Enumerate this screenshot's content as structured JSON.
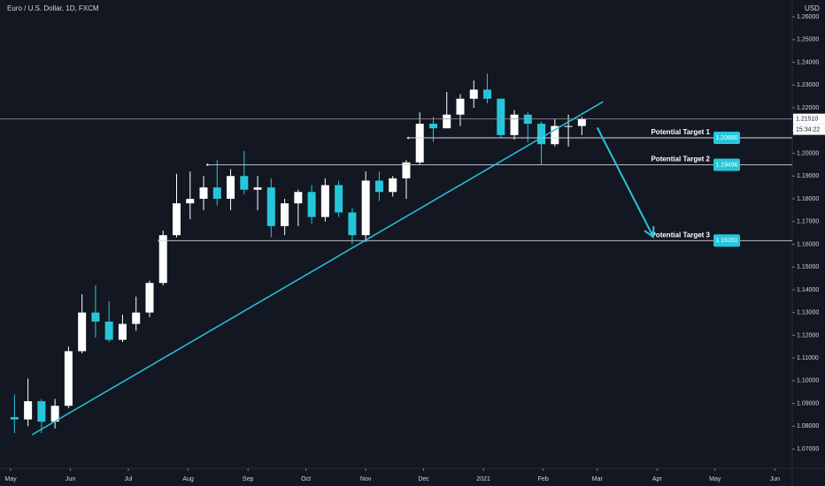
{
  "chart_data": {
    "type": "candlestick",
    "title": "Euro / U.S. Dollar, 1D, FXCM",
    "y_axis_label": "USD",
    "up_color": "#ffffff",
    "down_color": "#26c6da",
    "xlim": [
      -5.5,
      405
    ],
    "ylim": [
      1.0615,
      1.2674
    ],
    "xticks": [
      {
        "value": 0,
        "label": "May"
      },
      {
        "value": 31,
        "label": "Jun"
      },
      {
        "value": 61,
        "label": "Jul"
      },
      {
        "value": 92,
        "label": "Aug"
      },
      {
        "value": 123,
        "label": "Sep"
      },
      {
        "value": 153,
        "label": "Oct"
      },
      {
        "value": 184,
        "label": "Nov"
      },
      {
        "value": 214,
        "label": "Dec"
      },
      {
        "value": 245,
        "label": "2021"
      },
      {
        "value": 276,
        "label": "Feb"
      },
      {
        "value": 304,
        "label": "Mar"
      },
      {
        "value": 335,
        "label": "Apr"
      },
      {
        "value": 365,
        "label": "May"
      },
      {
        "value": 396,
        "label": "Jun"
      }
    ],
    "yticks": [
      {
        "value": 1.07,
        "label": "1.07000"
      },
      {
        "value": 1.08,
        "label": "1.08000"
      },
      {
        "value": 1.09,
        "label": "1.09000"
      },
      {
        "value": 1.1,
        "label": "1.10000"
      },
      {
        "value": 1.11,
        "label": "1.11000"
      },
      {
        "value": 1.12,
        "label": "1.12000"
      },
      {
        "value": 1.13,
        "label": "1.13000"
      },
      {
        "value": 1.14,
        "label": "1.14000"
      },
      {
        "value": 1.15,
        "label": "1.15000"
      },
      {
        "value": 1.16,
        "label": "1.16000"
      },
      {
        "value": 1.17,
        "label": "1.17000"
      },
      {
        "value": 1.18,
        "label": "1.18000"
      },
      {
        "value": 1.19,
        "label": "1.19000"
      },
      {
        "value": 1.2,
        "label": "1.20000"
      },
      {
        "value": 1.21,
        "label": "1.21000"
      },
      {
        "value": 1.22,
        "label": "1.22000"
      },
      {
        "value": 1.23,
        "label": "1.23000"
      },
      {
        "value": 1.24,
        "label": "1.24000"
      },
      {
        "value": 1.25,
        "label": "1.25000"
      },
      {
        "value": 1.26,
        "label": "1.26000"
      }
    ],
    "x": [
      2,
      9,
      16,
      23,
      30,
      37,
      44,
      51,
      58,
      65,
      72,
      79,
      86,
      93,
      100,
      107,
      114,
      121,
      128,
      135,
      142,
      149,
      156,
      163,
      170,
      177,
      184,
      191,
      198,
      205,
      212,
      219,
      226,
      233,
      240,
      247,
      254,
      261,
      268,
      275,
      282,
      289,
      296
    ],
    "open": [
      1.084,
      1.083,
      1.091,
      1.082,
      1.089,
      1.113,
      1.13,
      1.126,
      1.118,
      1.125,
      1.13,
      1.143,
      1.164,
      1.178,
      1.18,
      1.185,
      1.18,
      1.19,
      1.184,
      1.185,
      1.168,
      1.178,
      1.183,
      1.172,
      1.186,
      1.174,
      1.164,
      1.188,
      1.183,
      1.189,
      1.196,
      1.213,
      1.211,
      1.217,
      1.224,
      1.228,
      1.224,
      1.208,
      1.217,
      1.213,
      1.204,
      1.212,
      1.212
    ],
    "high": [
      1.094,
      1.101,
      1.092,
      1.092,
      1.115,
      1.138,
      1.142,
      1.135,
      1.129,
      1.137,
      1.144,
      1.166,
      1.191,
      1.192,
      1.19,
      1.197,
      1.193,
      1.201,
      1.19,
      1.189,
      1.18,
      1.184,
      1.186,
      1.189,
      1.188,
      1.176,
      1.192,
      1.192,
      1.19,
      1.197,
      1.218,
      1.216,
      1.227,
      1.226,
      1.232,
      1.235,
      1.224,
      1.219,
      1.218,
      1.214,
      1.215,
      1.217,
      1.216
    ],
    "low": [
      1.077,
      1.08,
      1.077,
      1.079,
      1.088,
      1.112,
      1.119,
      1.117,
      1.117,
      1.122,
      1.128,
      1.142,
      1.163,
      1.171,
      1.175,
      1.177,
      1.175,
      1.182,
      1.175,
      1.163,
      1.164,
      1.168,
      1.169,
      1.17,
      1.172,
      1.16,
      1.161,
      1.179,
      1.181,
      1.18,
      1.195,
      1.205,
      1.211,
      1.212,
      1.22,
      1.222,
      1.207,
      1.206,
      1.205,
      1.195,
      1.203,
      1.203,
      1.208
    ],
    "close": [
      1.083,
      1.091,
      1.082,
      1.089,
      1.113,
      1.13,
      1.126,
      1.118,
      1.125,
      1.13,
      1.143,
      1.164,
      1.178,
      1.18,
      1.185,
      1.18,
      1.19,
      1.184,
      1.185,
      1.168,
      1.178,
      1.183,
      1.172,
      1.186,
      1.174,
      1.164,
      1.188,
      1.183,
      1.189,
      1.196,
      1.213,
      1.211,
      1.217,
      1.224,
      1.228,
      1.224,
      1.208,
      1.217,
      1.213,
      1.204,
      1.212,
      1.212,
      1.215
    ],
    "targets": {
      "names": [
        "Potential Target 1",
        "Potential Target 2",
        "Potential Target 3"
      ],
      "values": [
        1.2068,
        1.19496,
        1.16161
      ],
      "value_labels": [
        "1.20680",
        "1.19496",
        "1.16161"
      ],
      "starts": [
        206,
        102,
        77
      ],
      "color": "#26c6da"
    },
    "current_price": {
      "value": 1.2151,
      "label": "1.21510",
      "countdown": "15:34:22"
    },
    "trendline": {
      "x": [
        11,
        307
      ],
      "y": [
        1.0762,
        1.2227
      ],
      "color": "#26c6da"
    },
    "arrow": {
      "x": [
        304,
        333
      ],
      "y": [
        1.2113,
        1.1633
      ],
      "color": "#26c6da"
    }
  }
}
